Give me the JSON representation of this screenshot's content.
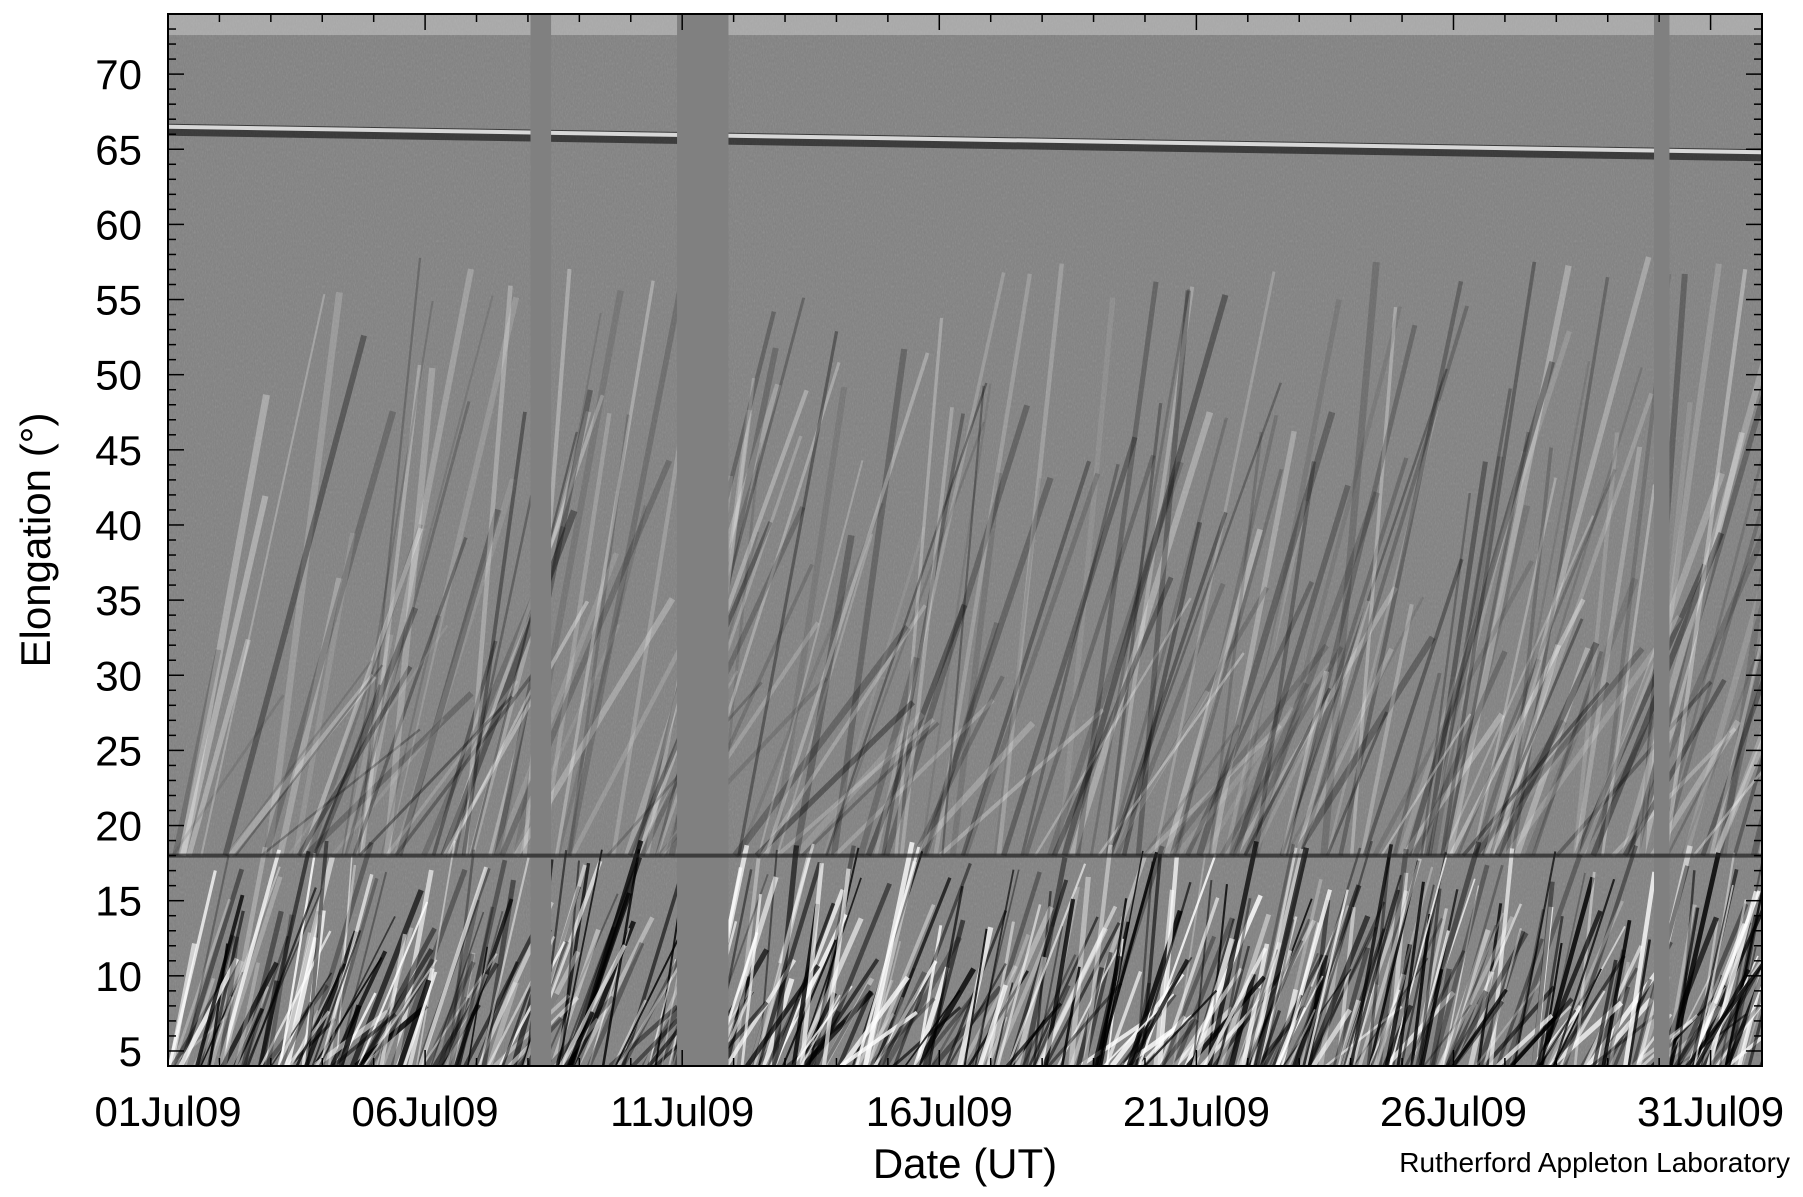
{
  "chart_data": {
    "type": "heatmap",
    "title": "",
    "xlabel": "Date (UT)",
    "ylabel": "Elongation (°)",
    "x_range": [
      "01Jul09",
      "01Aug09"
    ],
    "x_ticks": [
      "01Jul09",
      "06Jul09",
      "11Jul09",
      "16Jul09",
      "21Jul09",
      "26Jul09",
      "31Jul09"
    ],
    "x_tick_day_index": [
      0,
      5,
      10,
      15,
      20,
      25,
      30
    ],
    "x_minor_ticks_per_major": 5,
    "ylim": [
      4,
      74
    ],
    "y_ticks": [
      5,
      10,
      15,
      20,
      25,
      30,
      35,
      40,
      45,
      50,
      55,
      60,
      65,
      70
    ],
    "y_minor_step": 1,
    "colormap": "grayscale",
    "background_color": "#808080",
    "camera_boundary_elongation": 18,
    "bright_band_elongation": [
      66.3,
      64.6
    ],
    "data_gaps_days": [
      [
        7.05,
        7.45
      ],
      [
        9.9,
        10.9
      ],
      [
        28.9,
        29.2
      ]
    ],
    "credit": "Rutherford Appleton Laboratory"
  }
}
